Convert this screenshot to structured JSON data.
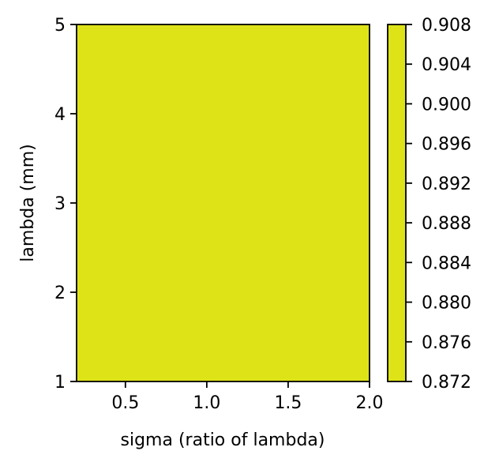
{
  "chart_data": {
    "type": "heatmap",
    "title": "",
    "xlabel": "sigma (ratio of lambda)",
    "ylabel": "lambda (mm)",
    "xlim": [
      0.2,
      2.0
    ],
    "ylim": [
      1,
      5
    ],
    "x_ticks": [
      0.5,
      1.0,
      1.5,
      2.0
    ],
    "x_tick_labels": [
      "0.5",
      "1.0",
      "1.5",
      "2.0"
    ],
    "y_ticks": [
      1,
      2,
      3,
      4,
      5
    ],
    "y_tick_labels": [
      "1",
      "2",
      "3",
      "4",
      "5"
    ],
    "colorbar": {
      "range": [
        0.872,
        0.908
      ],
      "ticks": [
        0.872,
        0.876,
        0.88,
        0.884,
        0.888,
        0.892,
        0.896,
        0.9,
        0.904,
        0.908
      ],
      "tick_labels": [
        "0.872",
        "0.876",
        "0.880",
        "0.884",
        "0.888",
        "0.892",
        "0.896",
        "0.900",
        "0.904",
        "0.908"
      ],
      "fill_color": "#dee318"
    },
    "heatmap_fill_color": "#dee318",
    "grid": false
  }
}
